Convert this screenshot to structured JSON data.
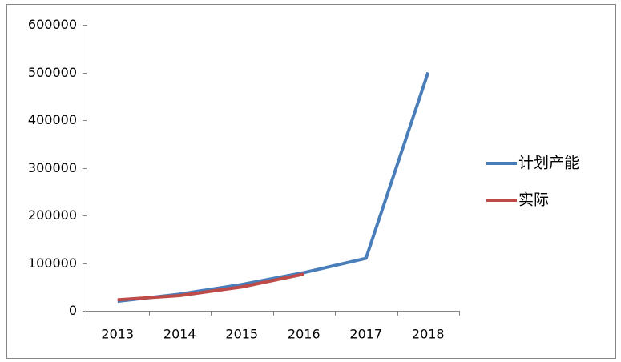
{
  "chart_data": {
    "type": "line",
    "categories": [
      "2013",
      "2014",
      "2015",
      "2016",
      "2017",
      "2018"
    ],
    "series": [
      {
        "name": "计划产能",
        "color": "#4a7ebb",
        "values": [
          20000,
          35000,
          55000,
          80000,
          110000,
          500000
        ]
      },
      {
        "name": "实际",
        "color": "#be4b48",
        "values": [
          23000,
          32000,
          50000,
          77000,
          null,
          null
        ]
      }
    ],
    "ylim": [
      0,
      600000
    ],
    "yticks": [
      0,
      100000,
      200000,
      300000,
      400000,
      500000,
      600000
    ],
    "grid": false,
    "legend": "right"
  }
}
